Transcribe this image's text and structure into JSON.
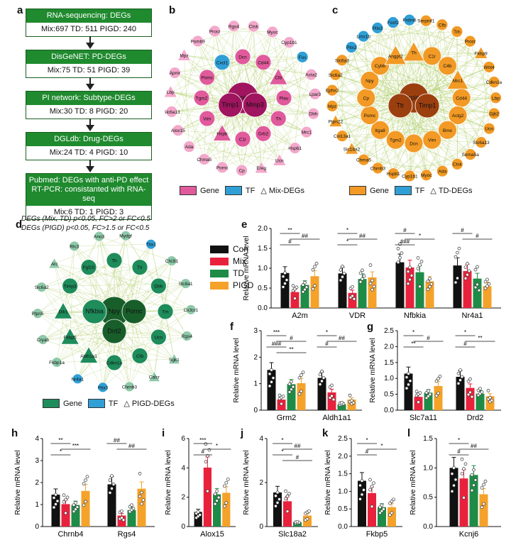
{
  "panels": {
    "a": "a",
    "b": "b",
    "c": "c",
    "d": "d",
    "e": "e",
    "f": "f",
    "g": "g",
    "h": "h",
    "i": "i",
    "j": "j",
    "k": "k",
    "l": "l"
  },
  "flow": [
    {
      "head": "RNA-sequencing: DEGs",
      "body": "Mix:697  TD: 511  PIGD: 240"
    },
    {
      "head": "DisGeNET: PD-DEGs",
      "body": "Mix:75  TD: 51  PIGD: 39"
    },
    {
      "head": "PI network: Subtype-DEGs",
      "body": "Mix:30  TD: 8  PIGD: 20"
    },
    {
      "head": "DGLdb: Drug-DEGs",
      "body": "Mix:24  TD: 4  PIGD: 10"
    },
    {
      "head": "Pubmed: DEGs with anti-PD effect",
      "head2": "RT-PCR: consistanted with RNA-seq",
      "body": "Mix:6  TD: 1  PIGD: 3"
    }
  ],
  "footnote": [
    "DEGs (Mix, TD) p<0.05, FC>2 or FC<0.5",
    "DEGs (PIGD) p<0.05, FC>1.5 or FC<0.5"
  ],
  "networks": {
    "b": {
      "legend": [
        "Gene",
        "TF",
        "Mix-DEGs"
      ],
      "colors": {
        "gene": "#e05a9c",
        "tf": "#2f9fd6",
        "light": "#f3a8cb",
        "dark": "#a0155f"
      },
      "nodes": [
        "Serpine1",
        "Mmp3",
        "Timp1",
        "Dcn",
        "Cd44",
        "Clb",
        "Plau",
        "Th",
        "Grb2",
        "C1r",
        "Hspb",
        "Vim",
        "Tgm2",
        "Pomc",
        "Cxcl1",
        "Ctsk",
        "Myoc",
        "Cyp1b1",
        "Fos",
        "Acta2",
        "Lpar3",
        "Dbh",
        "Mrc1",
        "Hspb1",
        "Ucn",
        "Ereg",
        "Cp",
        "Pomc",
        "Chma5",
        "Ada",
        "Alox15",
        "Slc6a13",
        "Lbp",
        "Apmr",
        "Mpz",
        "Psmb9",
        "Procr",
        "Rgs4"
      ]
    },
    "c": {
      "legend": [
        "Gene",
        "TF",
        "TD-DEGs"
      ],
      "colors": {
        "gene": "#f29a25",
        "tf": "#2f9fd6",
        "dark": "#9c3f0f"
      },
      "nodes": [
        "Serpine1",
        "Timp1",
        "Ttr",
        "Th",
        "C1r",
        "C4b",
        "Mrc1",
        "Cd44",
        "Actg2",
        "Bmx",
        "Vim",
        "Dcn",
        "Tgm2",
        "Itga8",
        "Pomc",
        "Cp",
        "Npy",
        "Cybb",
        "Angpt2",
        "Serpinf1",
        "Cfb",
        "Trh",
        "Procr",
        "Fkbp9",
        "Wnt4",
        "Cdkn1a",
        "Lbp",
        "Gjb2",
        "Ucn",
        "Slc6a13",
        "Sema5a",
        "Ctsk",
        "Ada",
        "Myoc",
        "Cyp1b1",
        "Hspb1",
        "Chrnb3",
        "Chma5",
        "Slc18a2",
        "Col13a1",
        "Ptpn22",
        "Mpz",
        "Ephx2",
        "Slc6a2",
        "Slc6a3",
        "Pitx2",
        "Lmx1b",
        "Pitx3",
        "Foxf2",
        "Prdm6"
      ]
    },
    "d": {
      "legend": [
        "Gene",
        "TF",
        "PIGD-DEGs"
      ],
      "colors": {
        "gene": "#1e8c5b",
        "tf": "#2f9fd6",
        "dark": "#185e2a",
        "light": "#8ec9a9"
      },
      "nodes": [
        "Npy",
        "Pomc",
        "Drd2",
        "Nfkbia",
        "Th",
        "Ttr",
        "Dbh",
        "Tm",
        "Ucn",
        "Cfb",
        "Cdkn1a",
        "Aldh1a1",
        "Fkbp5",
        "Dlk1",
        "Timp3",
        "Fgf20",
        "Mydgf",
        "Tbx1",
        "Chi3l1",
        "Slc8a1",
        "Cx3cr1",
        "Rgs4",
        "Sgk1",
        "Calcr",
        "Chrnb3",
        "Pitx3",
        "Nr4a1",
        "Fkbp1a",
        "Cryab",
        "Ptpn5",
        "Slc6a2",
        "Arc",
        "Rlc3",
        "Ano3"
      ]
    }
  },
  "legend_groups": [
    "Con",
    "Mix",
    "TD",
    "PIGD"
  ],
  "group_colors": [
    "#111111",
    "#e8223c",
    "#1e8c46",
    "#f4a22a"
  ],
  "ylabel": "Relative mRNA level",
  "chart_data": [
    {
      "panel": "e",
      "type": "bar",
      "categories": [
        "A2m",
        "VDR",
        "Nfbkia",
        "Nr4a1"
      ],
      "ylim": [
        0,
        2.0
      ],
      "yticks": [
        0,
        0.5,
        1.0,
        1.5,
        2.0
      ],
      "series": [
        {
          "name": "Con",
          "values": [
            0.88,
            0.87,
            1.15,
            1.07
          ]
        },
        {
          "name": "Mix",
          "values": [
            0.4,
            0.38,
            1.02,
            0.93
          ]
        },
        {
          "name": "TD",
          "values": [
            0.58,
            0.73,
            0.9,
            0.74
          ]
        },
        {
          "name": "PIGD",
          "values": [
            0.8,
            0.77,
            0.67,
            0.55
          ]
        }
      ],
      "annotations": [
        "**",
        "##",
        "#",
        "*",
        "##",
        "*",
        "#",
        "*",
        "###",
        "#",
        "#"
      ]
    },
    {
      "panel": "f",
      "type": "bar",
      "categories": [
        "Grm2",
        "Aldh1a1"
      ],
      "ylim": [
        0,
        3
      ],
      "yticks": [
        0,
        1,
        2,
        3
      ],
      "series": [
        {
          "name": "Con",
          "values": [
            1.52,
            1.22
          ]
        },
        {
          "name": "Mix",
          "values": [
            0.4,
            0.67
          ]
        },
        {
          "name": "TD",
          "values": [
            0.98,
            0.22
          ]
        },
        {
          "name": "PIGD",
          "values": [
            1.02,
            0.4
          ]
        }
      ],
      "annotations": [
        "***",
        "#",
        "###",
        "**",
        "*",
        "##",
        "#"
      ]
    },
    {
      "panel": "g",
      "type": "bar",
      "categories": [
        "Slc7a11",
        "Drd2"
      ],
      "ylim": [
        0,
        2.5
      ],
      "yticks": [
        0,
        0.5,
        1.0,
        1.5,
        2.0,
        2.5
      ],
      "series": [
        {
          "name": "Con",
          "values": [
            1.15,
            1.05
          ]
        },
        {
          "name": "Mix",
          "values": [
            0.42,
            0.7
          ]
        },
        {
          "name": "TD",
          "values": [
            0.55,
            0.52
          ]
        },
        {
          "name": "PIGD",
          "values": [
            0.76,
            0.44
          ]
        }
      ],
      "annotations": [
        "*",
        "#",
        "**",
        "*",
        "**",
        "#"
      ]
    },
    {
      "panel": "h",
      "type": "bar",
      "categories": [
        "Chrnb4",
        "Rgs4"
      ],
      "ylim": [
        0,
        4
      ],
      "yticks": [
        0,
        1,
        2,
        3,
        4
      ],
      "series": [
        {
          "name": "Con",
          "values": [
            1.45,
            1.92
          ]
        },
        {
          "name": "Mix",
          "values": [
            1.02,
            0.5
          ]
        },
        {
          "name": "TD",
          "values": [
            0.98,
            0.75
          ]
        },
        {
          "name": "PIGD",
          "values": [
            1.62,
            1.72
          ]
        }
      ],
      "annotations": [
        "**",
        "***",
        "*",
        "##",
        "##"
      ]
    },
    {
      "panel": "i",
      "type": "bar",
      "categories": [
        "Alox15"
      ],
      "ylim": [
        0,
        6
      ],
      "yticks": [
        0,
        2,
        4,
        6
      ],
      "series": [
        {
          "name": "Con",
          "values": [
            1.0
          ]
        },
        {
          "name": "Mix",
          "values": [
            4.02
          ]
        },
        {
          "name": "TD",
          "values": [
            2.2
          ]
        },
        {
          "name": "PIGD",
          "values": [
            2.3
          ]
        }
      ],
      "annotations": [
        "***",
        "*",
        "#"
      ]
    },
    {
      "panel": "j",
      "type": "bar",
      "categories": [
        "Slc18a2"
      ],
      "ylim": [
        0,
        4
      ],
      "yticks": [
        0,
        2,
        4
      ],
      "series": [
        {
          "name": "Con",
          "values": [
            1.55
          ]
        },
        {
          "name": "Mix",
          "values": [
            1.15
          ]
        },
        {
          "name": "TD",
          "values": [
            0.2
          ]
        },
        {
          "name": "PIGD",
          "values": [
            0.5
          ]
        }
      ],
      "annotations": [
        "*",
        "##",
        "*",
        "#"
      ]
    },
    {
      "panel": "k",
      "type": "bar",
      "categories": [
        "Fkbp5"
      ],
      "ylim": [
        0,
        2.5
      ],
      "yticks": [
        0,
        0.5,
        1.0,
        1.5,
        2.0,
        2.5
      ],
      "series": [
        {
          "name": "Con",
          "values": [
            1.3
          ]
        },
        {
          "name": "Mix",
          "values": [
            0.95
          ]
        },
        {
          "name": "TD",
          "values": [
            0.55
          ]
        },
        {
          "name": "PIGD",
          "values": [
            0.55
          ]
        }
      ],
      "annotations": [
        "*",
        "*",
        "#"
      ]
    },
    {
      "panel": "l",
      "type": "bar",
      "categories": [
        "Kcnj6"
      ],
      "ylim": [
        0,
        1.5
      ],
      "yticks": [
        0,
        0.5,
        1.0,
        1.5
      ],
      "series": [
        {
          "name": "Con",
          "values": [
            1.0
          ]
        },
        {
          "name": "Mix",
          "values": [
            0.82
          ]
        },
        {
          "name": "TD",
          "values": [
            0.88
          ]
        },
        {
          "name": "PIGD",
          "values": [
            0.55
          ]
        }
      ],
      "annotations": [
        "*",
        "##",
        "#"
      ]
    }
  ]
}
